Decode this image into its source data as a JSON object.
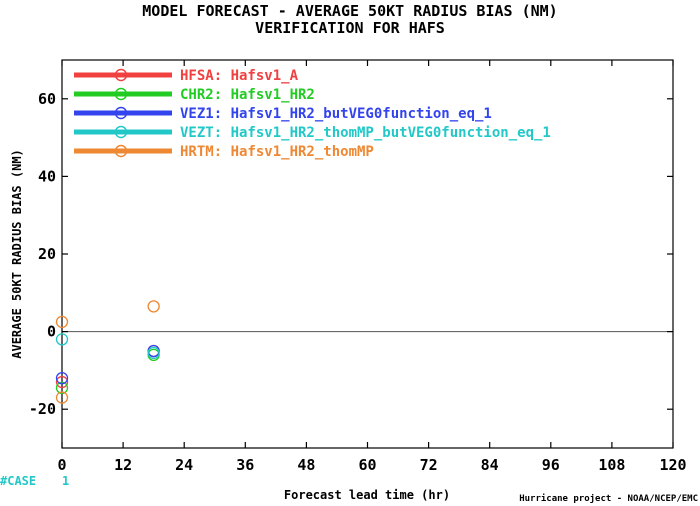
{
  "chart_data": {
    "type": "scatter",
    "title": "MODEL FORECAST - AVERAGE 50KT RADIUS BIAS (NM)",
    "subtitle": "VERIFICATION FOR HAFS",
    "xlabel": "Forecast lead time (hr)",
    "ylabel": "AVERAGE 50KT RADIUS BIAS (NM)",
    "xlim": [
      0,
      120
    ],
    "ylim": [
      -30,
      70
    ],
    "xticks": [
      0,
      12,
      24,
      36,
      48,
      60,
      72,
      84,
      96,
      108,
      120
    ],
    "yticks": [
      -20,
      0,
      20,
      40,
      60
    ],
    "grid": false,
    "legend_position": "top-left",
    "zero_line": true,
    "case_label": "#CASE",
    "case_counts": [
      {
        "x": 0,
        "count": "1"
      }
    ],
    "credit": "Hurricane project - NOAA/NCEP/EMC",
    "series": [
      {
        "id": "HFSA",
        "name": "Hafsv1_A",
        "color": "#f04040",
        "points": [
          {
            "x": 0,
            "y": -13
          },
          {
            "x": 18,
            "y": -5
          }
        ]
      },
      {
        "id": "CHR2",
        "name": "Hafsv1_HR2",
        "color": "#22cc22",
        "points": [
          {
            "x": 0,
            "y": -14.5
          },
          {
            "x": 18,
            "y": -6
          }
        ]
      },
      {
        "id": "VEZ1",
        "name": "Hafsv1_HR2_butVEG0function_eq_1",
        "color": "#3344ee",
        "points": [
          {
            "x": 0,
            "y": -12
          },
          {
            "x": 18,
            "y": -5
          }
        ]
      },
      {
        "id": "VEZT",
        "name": "Hafsv1_HR2_thomMP_butVEG0function_eq_1",
        "color": "#22c8c8",
        "points": [
          {
            "x": 0,
            "y": -2
          },
          {
            "x": 18,
            "y": -5.5
          }
        ]
      },
      {
        "id": "HRTM",
        "name": "Hafsv1_HR2_thomMP",
        "color": "#ee8833",
        "points": [
          {
            "x": 0,
            "y": 2.5
          },
          {
            "x": 0,
            "y": -17
          },
          {
            "x": 18,
            "y": 6.5
          }
        ]
      }
    ]
  }
}
